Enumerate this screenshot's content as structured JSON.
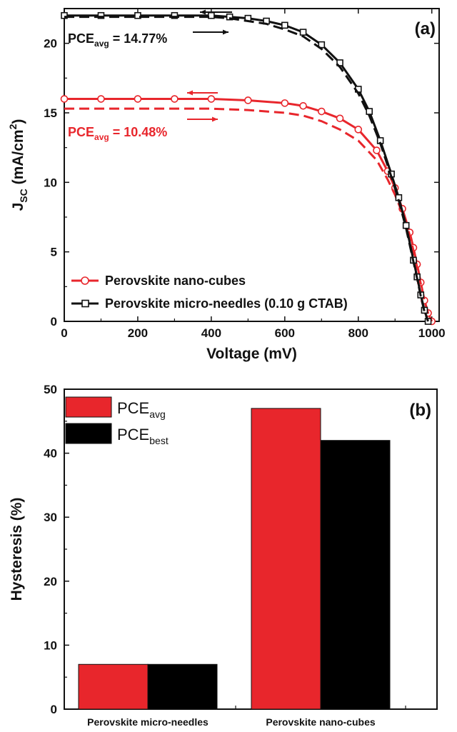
{
  "chart_data": [
    {
      "panel": "(a)",
      "type": "line",
      "xlabel": "Voltage (mV)",
      "ylabel_main": "J",
      "ylabel_sub": "SC",
      "ylabel_unit": " (mA/cm",
      "ylabel_sup": "2",
      "ylabel_close": ")",
      "xlim": [
        0,
        1020
      ],
      "ylim": [
        0,
        22.5
      ],
      "xticks": [
        0,
        200,
        400,
        600,
        800,
        1000
      ],
      "yticks": [
        0,
        5,
        10,
        15,
        20
      ],
      "grid": false,
      "legend_position": "bottom-left",
      "series": [
        {
          "name": "Perovskite nano-cubes",
          "color": "#e8262c",
          "marker": "circle",
          "style": "solid",
          "x": [
            0,
            100,
            200,
            300,
            400,
            500,
            600,
            650,
            700,
            750,
            800,
            850,
            880,
            900,
            920,
            940,
            950,
            960,
            970,
            980,
            990,
            1000
          ],
          "y": [
            16.0,
            16.0,
            16.0,
            16.0,
            16.0,
            15.9,
            15.7,
            15.5,
            15.1,
            14.6,
            13.8,
            12.3,
            10.8,
            9.6,
            8.1,
            6.4,
            5.3,
            4.1,
            2.8,
            1.5,
            0.6,
            0.0
          ]
        },
        {
          "name": "",
          "color": "#e8262c",
          "marker": "none",
          "style": "dashed",
          "x": [
            0,
            100,
            200,
            300,
            400,
            500,
            600,
            650,
            700,
            750,
            800,
            850,
            880,
            900,
            920,
            940,
            950,
            960,
            970,
            980,
            990,
            1000
          ],
          "y": [
            15.3,
            15.3,
            15.3,
            15.3,
            15.3,
            15.2,
            15.0,
            14.8,
            14.4,
            13.8,
            13.0,
            11.6,
            10.2,
            9.1,
            7.8,
            6.2,
            5.1,
            3.9,
            2.7,
            1.5,
            0.6,
            0.0
          ]
        },
        {
          "name": "Perovskite micro-needles (0.10 g CTAB)",
          "color": "#111111",
          "marker": "square",
          "style": "solid",
          "x": [
            0,
            100,
            200,
            300,
            400,
            450,
            500,
            550,
            600,
            650,
            700,
            750,
            800,
            830,
            860,
            890,
            910,
            930,
            950,
            960,
            970,
            980,
            990
          ],
          "y": [
            22.0,
            22.0,
            22.0,
            22.0,
            22.0,
            21.9,
            21.8,
            21.6,
            21.3,
            20.8,
            19.9,
            18.6,
            16.7,
            15.1,
            13.0,
            10.6,
            8.9,
            6.9,
            4.4,
            3.2,
            1.9,
            0.8,
            0.0
          ]
        },
        {
          "name": "",
          "color": "#111111",
          "marker": "none",
          "style": "dashed",
          "x": [
            0,
            100,
            200,
            300,
            400,
            450,
            500,
            550,
            600,
            650,
            700,
            750,
            800,
            830,
            860,
            890,
            910,
            930,
            950,
            960,
            970,
            980,
            990
          ],
          "y": [
            21.9,
            21.9,
            21.9,
            21.9,
            21.9,
            21.8,
            21.6,
            21.4,
            21.0,
            20.5,
            19.6,
            18.3,
            16.4,
            14.8,
            12.8,
            10.4,
            8.7,
            6.7,
            4.3,
            3.1,
            1.8,
            0.7,
            0.0
          ]
        }
      ],
      "annotations": {
        "black_pce_prefix": "PCE",
        "black_pce_sub": "avg",
        "black_pce_value": " = 14.77%",
        "red_pce_prefix": "PCE",
        "red_pce_sub": "avg",
        "red_pce_value": " = 10.48%"
      }
    },
    {
      "panel": "(b)",
      "type": "bar",
      "ylabel": "Hysteresis (%)",
      "ylim": [
        0,
        50
      ],
      "yticks": [
        0,
        10,
        20,
        30,
        40,
        50
      ],
      "categories": [
        "Perovskite micro-needles",
        "Perovskite nano-cubes"
      ],
      "legend_position": "top-left",
      "series": [
        {
          "name_main": "PCE",
          "name_sub": "avg",
          "color": "#e8262c",
          "values": [
            7,
            47
          ]
        },
        {
          "name_main": "PCE",
          "name_sub": "best",
          "color": "#000000",
          "values": [
            7,
            42
          ]
        }
      ]
    }
  ]
}
